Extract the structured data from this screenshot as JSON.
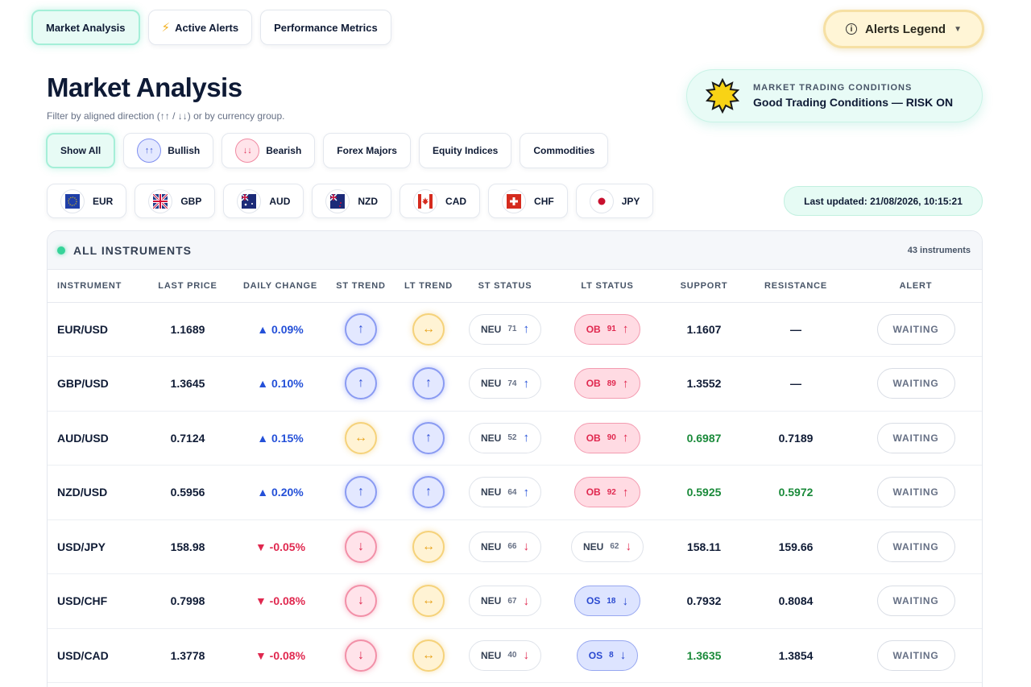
{
  "tabs": [
    {
      "label": "Market Analysis",
      "icon": ""
    },
    {
      "label": "Active Alerts",
      "icon": "lightning-icon"
    },
    {
      "label": "Performance Metrics",
      "icon": ""
    }
  ],
  "legend_button": {
    "label": "Alerts Legend"
  },
  "page": {
    "title": "Market Analysis",
    "subtitle": "Filter by aligned direction (↑↑ / ↓↓) or by currency group."
  },
  "conditions": {
    "label": "MARKET TRADING CONDITIONS",
    "value": "Good Trading Conditions — RISK ON"
  },
  "filters": [
    {
      "label": "Show All"
    },
    {
      "label": "Bullish",
      "icon_text": "↑↑"
    },
    {
      "label": "Bearish",
      "icon_text": "↓↓"
    },
    {
      "label": "Forex Majors"
    },
    {
      "label": "Equity Indices"
    },
    {
      "label": "Commodities"
    }
  ],
  "currencies": [
    "EUR",
    "GBP",
    "AUD",
    "NZD",
    "CAD",
    "CHF",
    "JPY"
  ],
  "last_updated": "Last updated: 21/08/2026, 10:15:21",
  "panel": {
    "title": "ALL INSTRUMENTS",
    "count": "43 instruments"
  },
  "columns": [
    "INSTRUMENT",
    "LAST PRICE",
    "DAILY CHANGE",
    "ST TREND",
    "LT TREND",
    "ST STATUS",
    "LT STATUS",
    "SUPPORT",
    "RESISTANCE",
    "ALERT"
  ],
  "rows": [
    {
      "instrument": "EUR/USD",
      "price": "1.1689",
      "change": "▲ 0.09%",
      "dir": "up",
      "st_trend": "↑",
      "lt_trend": "↔",
      "st_status": {
        "label": "NEU",
        "num": "71",
        "arrow": "↑"
      },
      "lt_status": {
        "label": "OB",
        "num": "91",
        "arrow": "↑"
      },
      "support": "1.1607",
      "resistance": "—",
      "alert": "WAITING"
    },
    {
      "instrument": "GBP/USD",
      "price": "1.3645",
      "change": "▲ 0.10%",
      "dir": "up",
      "st_trend": "↑",
      "lt_trend": "↑",
      "st_status": {
        "label": "NEU",
        "num": "74",
        "arrow": "↑"
      },
      "lt_status": {
        "label": "OB",
        "num": "89",
        "arrow": "↑"
      },
      "support": "1.3552",
      "resistance": "—",
      "alert": "WAITING"
    },
    {
      "instrument": "AUD/USD",
      "price": "0.7124",
      "change": "▲ 0.15%",
      "dir": "up",
      "st_trend": "↔",
      "lt_trend": "↑",
      "st_status": {
        "label": "NEU",
        "num": "52",
        "arrow": "↑"
      },
      "lt_status": {
        "label": "OB",
        "num": "90",
        "arrow": "↑"
      },
      "support": "0.6987",
      "resistance": "0.7189",
      "alert": "WAITING"
    },
    {
      "instrument": "NZD/USD",
      "price": "0.5956",
      "change": "▲ 0.20%",
      "dir": "up",
      "st_trend": "↑",
      "lt_trend": "↑",
      "st_status": {
        "label": "NEU",
        "num": "64",
        "arrow": "↑"
      },
      "lt_status": {
        "label": "OB",
        "num": "92",
        "arrow": "↑"
      },
      "support": "0.5925",
      "resistance": "0.5972",
      "alert": "WAITING"
    },
    {
      "instrument": "USD/JPY",
      "price": "158.98",
      "change": "▼ -0.05%",
      "dir": "down",
      "st_trend": "↓",
      "lt_trend": "↔",
      "st_status": {
        "label": "NEU",
        "num": "66",
        "arrow": "↓"
      },
      "lt_status": {
        "label": "NEU",
        "num": "62",
        "arrow": "↓"
      },
      "support": "158.11",
      "resistance": "159.66",
      "alert": "WAITING"
    },
    {
      "instrument": "USD/CHF",
      "price": "0.7998",
      "change": "▼ -0.08%",
      "dir": "down",
      "st_trend": "↓",
      "lt_trend": "↔",
      "st_status": {
        "label": "NEU",
        "num": "67",
        "arrow": "↓"
      },
      "lt_status": {
        "label": "OS",
        "num": "18",
        "arrow": "↓"
      },
      "support": "0.7932",
      "resistance": "0.8084",
      "alert": "WAITING"
    },
    {
      "instrument": "USD/CAD",
      "price": "1.3778",
      "change": "▼ -0.08%",
      "dir": "down",
      "st_trend": "↓",
      "lt_trend": "↔",
      "st_status": {
        "label": "NEU",
        "num": "40",
        "arrow": "↓"
      },
      "lt_status": {
        "label": "OS",
        "num": "8",
        "arrow": "↓"
      },
      "support": "1.3635",
      "resistance": "1.3854",
      "alert": "WAITING"
    }
  ],
  "colors": {
    "accent_green": "#36d399",
    "bull": "#2450d8",
    "bear": "#e0284f",
    "neutral": "#e7a21a",
    "support_green": "#1a8a3a"
  }
}
